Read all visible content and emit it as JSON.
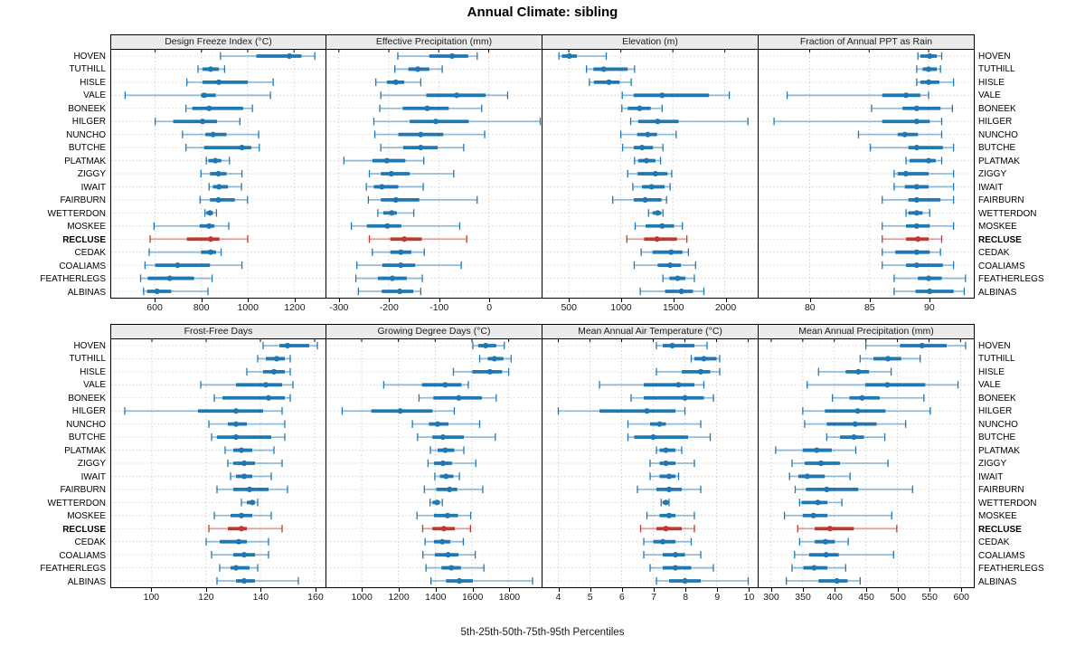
{
  "chart_data": {
    "type": "scatter",
    "subtype": "percentile-dot-whisker",
    "title": "Annual Climate: sibling",
    "footer": "5th-25th-50th-75th-95th Percentiles",
    "layout": {
      "rows": 2,
      "cols": 4,
      "grid": "dotted",
      "legend": "none"
    },
    "colors": {
      "series": "#1f77b4",
      "highlight": "#c0392b",
      "header_bg": "#ebebeb",
      "grid": "#c4c4c4"
    },
    "percentiles": [
      "5th",
      "25th",
      "50th",
      "75th",
      "95th"
    ],
    "highlight_site": "RECLUSE",
    "sites": [
      "HOVEN",
      "TUTHILL",
      "HISLE",
      "VALE",
      "BONEEK",
      "HILGER",
      "NUNCHO",
      "BUTCHE",
      "PLATMAK",
      "ZIGGY",
      "IWAIT",
      "FAIRBURN",
      "WETTERDON",
      "MOSKEE",
      "RECLUSE",
      "CEDAK",
      "COALIAMS",
      "FEATHERLEGS",
      "ALBINAS"
    ],
    "panels": [
      {
        "title": "Design Freeze Index (°C)",
        "xlim": [
          410,
          1336
        ],
        "ticks": [
          600,
          800,
          1000,
          1200
        ],
        "values": [
          [
            882,
            1037,
            1180,
            1232,
            1290
          ],
          [
            785,
            805,
            840,
            875,
            900
          ],
          [
            737,
            805,
            875,
            1000,
            1110
          ],
          [
            470,
            798,
            812,
            862,
            1098
          ],
          [
            733,
            760,
            833,
            980,
            1020
          ],
          [
            600,
            678,
            805,
            867,
            966
          ],
          [
            718,
            817,
            850,
            908,
            1047
          ],
          [
            733,
            811,
            975,
            1015,
            1050
          ],
          [
            821,
            830,
            860,
            886,
            921
          ],
          [
            798,
            837,
            873,
            908,
            975
          ],
          [
            833,
            850,
            876,
            915,
            973
          ],
          [
            794,
            837,
            873,
            944,
            999
          ],
          [
            815,
            821,
            837,
            850,
            865
          ],
          [
            595,
            792,
            833,
            856,
            918
          ],
          [
            578,
            737,
            840,
            878,
            1000
          ],
          [
            574,
            798,
            840,
            863,
            885
          ],
          [
            556,
            600,
            697,
            837,
            975
          ],
          [
            537,
            568,
            663,
            768,
            846
          ],
          [
            550,
            565,
            608,
            669,
            828
          ]
        ]
      },
      {
        "title": "Effective Precipitation (mm)",
        "xlim": [
          -325,
          106
        ],
        "ticks": [
          -300,
          -200,
          -100,
          0
        ],
        "values": [
          [
            -182,
            -119,
            -73,
            -41,
            -23
          ],
          [
            -188,
            -161,
            -142,
            -119,
            -93
          ],
          [
            -226,
            -204,
            -186,
            -169,
            -136
          ],
          [
            -216,
            -125,
            -64,
            -6,
            38
          ],
          [
            -218,
            -172,
            -123,
            -80,
            -14
          ],
          [
            -230,
            -158,
            -106,
            -40,
            104
          ],
          [
            -228,
            -181,
            -136,
            -91,
            -8
          ],
          [
            -216,
            -171,
            -136,
            -102,
            -50
          ],
          [
            -290,
            -233,
            -204,
            -167,
            -130
          ],
          [
            -239,
            -216,
            -195,
            -158,
            -70
          ],
          [
            -245,
            -230,
            -214,
            -181,
            -131
          ],
          [
            -241,
            -216,
            -186,
            -139,
            -23
          ],
          [
            -222,
            -211,
            -194,
            -184,
            -150
          ],
          [
            -275,
            -244,
            -203,
            -175,
            -58
          ],
          [
            -239,
            -197,
            -169,
            -134,
            -44
          ],
          [
            -233,
            -197,
            -176,
            -155,
            -129
          ],
          [
            -264,
            -213,
            -176,
            -147,
            -55
          ],
          [
            -266,
            -222,
            -193,
            -164,
            -133
          ],
          [
            -261,
            -214,
            -178,
            -151,
            -136
          ]
        ]
      },
      {
        "title": "Elevation (m)",
        "xlim": [
          247,
          2316
        ],
        "ticks": [
          500,
          1000,
          1500,
          2000
        ],
        "values": [
          [
            405,
            434,
            505,
            578,
            860
          ],
          [
            670,
            736,
            836,
            1066,
            1132
          ],
          [
            698,
            741,
            885,
            989,
            1100
          ],
          [
            1014,
            1124,
            1397,
            1848,
            2043
          ],
          [
            1010,
            1066,
            1181,
            1287,
            1397
          ],
          [
            1095,
            1167,
            1354,
            1555,
            2222
          ],
          [
            1000,
            1158,
            1259,
            1348,
            1532
          ],
          [
            1017,
            1124,
            1204,
            1310,
            1405
          ],
          [
            1132,
            1167,
            1247,
            1333,
            1382
          ],
          [
            1066,
            1161,
            1333,
            1448,
            1489
          ],
          [
            1115,
            1204,
            1296,
            1420,
            1474
          ],
          [
            922,
            1124,
            1233,
            1391,
            1440
          ],
          [
            1267,
            1305,
            1354,
            1388,
            1405
          ],
          [
            1138,
            1239,
            1397,
            1512,
            1592
          ],
          [
            1058,
            1224,
            1348,
            1540,
            1635
          ],
          [
            1196,
            1305,
            1483,
            1592,
            1650
          ],
          [
            1129,
            1354,
            1474,
            1578,
            1719
          ],
          [
            1405,
            1468,
            1546,
            1621,
            1707
          ],
          [
            1187,
            1425,
            1583,
            1693,
            1799
          ]
        ]
      },
      {
        "title": "Fraction of Annual PPT as Rain",
        "xlim": [
          75.7,
          93.8
        ],
        "ticks": [
          80,
          85,
          90
        ],
        "values": [
          [
            89.1,
            89.3,
            90.1,
            90.7,
            91.1
          ],
          [
            89.0,
            89.5,
            90.0,
            90.7,
            91.0
          ],
          [
            89.0,
            89.3,
            90.0,
            90.9,
            92.1
          ],
          [
            78.1,
            86.1,
            88.1,
            89.3,
            90.0
          ],
          [
            85.2,
            87.8,
            89.0,
            91.0,
            92.0
          ],
          [
            77.0,
            86.1,
            89.0,
            90.1,
            91.1
          ],
          [
            84.1,
            87.4,
            88.0,
            89.1,
            91.1
          ],
          [
            85.1,
            88.3,
            89.0,
            91.2,
            92.1
          ],
          [
            88.1,
            88.4,
            90.0,
            90.6,
            91.1
          ],
          [
            87.1,
            87.4,
            88.1,
            90.0,
            92.1
          ],
          [
            87.1,
            88.0,
            89.0,
            90.0,
            92.1
          ],
          [
            86.1,
            88.3,
            89.0,
            91.0,
            92.1
          ],
          [
            88.1,
            88.3,
            89.0,
            89.5,
            90.1
          ],
          [
            86.1,
            88.1,
            89.0,
            90.1,
            92.1
          ],
          [
            86.1,
            88.1,
            89.1,
            90.0,
            91.1
          ],
          [
            86.1,
            87.2,
            89.0,
            90.1,
            91.0
          ],
          [
            86.1,
            88.1,
            89.0,
            91.2,
            92.1
          ],
          [
            87.1,
            89.1,
            90.0,
            91.1,
            93.1
          ],
          [
            87.1,
            88.9,
            90.1,
            92.1,
            93.0
          ]
        ]
      },
      {
        "title": "Frost-Free Days",
        "xlim": [
          85,
          164
        ],
        "ticks": [
          100,
          120,
          140,
          160
        ],
        "values": [
          [
            141,
            147,
            150,
            158,
            161
          ],
          [
            139,
            142,
            146,
            149,
            151
          ],
          [
            135,
            141,
            145,
            149,
            151
          ],
          [
            118,
            131,
            142,
            148,
            152
          ],
          [
            123,
            126,
            143,
            149,
            151
          ],
          [
            90,
            117,
            131,
            141,
            148
          ],
          [
            121,
            128,
            131,
            135,
            149
          ],
          [
            122,
            124,
            131,
            144,
            149
          ],
          [
            127,
            130,
            133,
            137,
            145
          ],
          [
            128,
            130,
            134,
            138,
            148
          ],
          [
            129,
            131,
            134,
            137,
            144
          ],
          [
            124,
            130,
            136,
            143,
            150
          ],
          [
            133,
            135,
            137,
            138,
            139
          ],
          [
            123,
            129,
            133,
            137,
            144
          ],
          [
            121,
            128,
            133,
            135,
            148
          ],
          [
            120,
            125,
            132,
            135,
            143
          ],
          [
            122,
            130,
            134,
            138,
            143
          ],
          [
            125,
            129,
            131,
            136,
            139
          ],
          [
            124,
            131,
            134,
            138,
            154
          ]
        ]
      },
      {
        "title": "Growing Degree Days (°C)",
        "xlim": [
          808,
          1979
        ],
        "ticks": [
          1000,
          1200,
          1400,
          1600,
          1800
        ],
        "values": [
          [
            1605,
            1634,
            1675,
            1732,
            1776
          ],
          [
            1642,
            1686,
            1722,
            1771,
            1813
          ],
          [
            1499,
            1602,
            1698,
            1764,
            1800
          ],
          [
            1120,
            1328,
            1455,
            1543,
            1580
          ],
          [
            1312,
            1390,
            1528,
            1654,
            1732
          ],
          [
            894,
            1052,
            1210,
            1385,
            1504
          ],
          [
            1276,
            1366,
            1413,
            1472,
            1642
          ],
          [
            1304,
            1385,
            1442,
            1556,
            1727
          ],
          [
            1374,
            1413,
            1455,
            1504,
            1556
          ],
          [
            1361,
            1393,
            1442,
            1491,
            1621
          ],
          [
            1398,
            1426,
            1459,
            1499,
            1532
          ],
          [
            1341,
            1406,
            1478,
            1520,
            1659
          ],
          [
            1372,
            1385,
            1410,
            1426,
            1439
          ],
          [
            1301,
            1393,
            1467,
            1524,
            1593
          ],
          [
            1332,
            1385,
            1447,
            1507,
            1592
          ],
          [
            1345,
            1393,
            1439,
            1483,
            1553
          ],
          [
            1333,
            1398,
            1470,
            1527,
            1618
          ],
          [
            1350,
            1434,
            1488,
            1540,
            1665
          ],
          [
            1377,
            1459,
            1532,
            1605,
            1930
          ]
        ]
      },
      {
        "title": "Mean Annual Air Temperature (°C)",
        "xlim": [
          3.5,
          10.3
        ],
        "ticks": [
          4,
          5,
          6,
          7,
          8,
          9,
          10
        ],
        "values": [
          [
            7.1,
            7.3,
            7.6,
            8.3,
            8.7
          ],
          [
            8.2,
            8.3,
            8.6,
            9.0,
            9.1
          ],
          [
            7.1,
            7.9,
            8.5,
            8.8,
            9.1
          ],
          [
            5.3,
            6.7,
            7.8,
            8.3,
            8.6
          ],
          [
            6.3,
            6.7,
            8.0,
            8.6,
            8.9
          ],
          [
            4.0,
            5.3,
            6.8,
            7.7,
            8.0
          ],
          [
            6.2,
            6.9,
            7.2,
            7.4,
            8.5
          ],
          [
            6.2,
            6.4,
            7.0,
            8.1,
            8.8
          ],
          [
            7.1,
            7.2,
            7.4,
            7.7,
            7.9
          ],
          [
            6.9,
            7.2,
            7.4,
            7.7,
            8.3
          ],
          [
            6.9,
            7.2,
            7.5,
            7.7,
            7.8
          ],
          [
            6.5,
            7.1,
            7.5,
            7.9,
            8.5
          ],
          [
            7.25,
            7.3,
            7.4,
            7.45,
            7.5
          ],
          [
            6.8,
            7.2,
            7.5,
            7.7,
            8.3
          ],
          [
            6.6,
            7.1,
            7.4,
            7.9,
            8.3
          ],
          [
            6.7,
            7.0,
            7.3,
            7.7,
            8.2
          ],
          [
            6.7,
            7.3,
            7.7,
            8.0,
            8.5
          ],
          [
            6.9,
            7.3,
            7.7,
            8.2,
            8.9
          ],
          [
            7.1,
            7.5,
            8.0,
            8.5,
            10.0
          ]
        ]
      },
      {
        "title": "Mean Annual Precipitation (mm)",
        "xlim": [
          280,
          621
        ],
        "ticks": [
          300,
          350,
          400,
          450,
          500,
          550,
          600
        ],
        "values": [
          [
            450,
            504,
            539,
            578,
            608
          ],
          [
            441,
            462,
            485,
            506,
            536
          ],
          [
            375,
            418,
            438,
            455,
            490
          ],
          [
            357,
            449,
            484,
            544,
            596
          ],
          [
            397,
            424,
            444,
            472,
            542
          ],
          [
            350,
            385,
            437,
            481,
            552
          ],
          [
            353,
            388,
            433,
            467,
            513
          ],
          [
            388,
            409,
            431,
            447,
            480
          ],
          [
            307,
            350,
            372,
            396,
            434
          ],
          [
            333,
            353,
            379,
            409,
            485
          ],
          [
            329,
            343,
            357,
            385,
            425
          ],
          [
            338,
            355,
            388,
            438,
            524
          ],
          [
            345,
            348,
            374,
            389,
            412
          ],
          [
            321,
            350,
            367,
            389,
            491
          ],
          [
            342,
            369,
            393,
            431,
            499
          ],
          [
            345,
            369,
            386,
            401,
            422
          ],
          [
            337,
            360,
            387,
            407,
            494
          ],
          [
            333,
            351,
            368,
            389,
            418
          ],
          [
            324,
            375,
            404,
            421,
            441
          ]
        ]
      }
    ]
  }
}
